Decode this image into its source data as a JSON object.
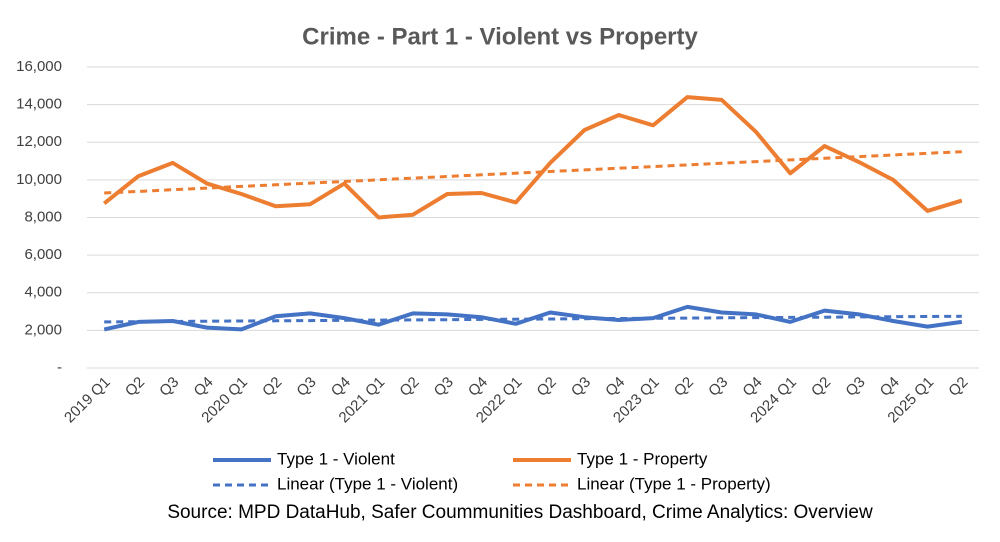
{
  "chart_data": {
    "type": "line",
    "title": "Crime - Part 1 - Violent vs Property",
    "source": "Source: MPD DataHub, Safer Coummunities Dashboard,  Crime Analytics: Overview",
    "categories": [
      "2019 Q1",
      "Q2",
      "Q3",
      "Q4",
      "2020 Q1",
      "Q2",
      "Q3",
      "Q4",
      "2021 Q1",
      "Q2",
      "Q3",
      "Q4",
      "2022 Q1",
      "Q2",
      "Q3",
      "Q4",
      "2023 Q1",
      "Q2",
      "Q3",
      "Q4",
      "2024 Q1",
      "Q2",
      "Q3",
      "Q4",
      "2025 Q1",
      "Q2"
    ],
    "series": [
      {
        "name": "Type 1 - Violent",
        "color": "#4472c4",
        "dashed": false,
        "values": [
          2050,
          2450,
          2500,
          2150,
          2050,
          2750,
          2900,
          2650,
          2300,
          2900,
          2850,
          2700,
          2350,
          2950,
          2700,
          2550,
          2650,
          3250,
          2950,
          2850,
          2450,
          3050,
          2850,
          2500,
          2200,
          2450
        ]
      },
      {
        "name": "Type 1 - Property",
        "color": "#ed7d31",
        "dashed": false,
        "values": [
          8750,
          10200,
          10900,
          9800,
          9250,
          8600,
          8700,
          9800,
          8000,
          8150,
          9250,
          9300,
          8800,
          10900,
          12650,
          13450,
          12900,
          14400,
          14250,
          12550,
          10350,
          11800,
          10950,
          10000,
          8350,
          8900
        ]
      },
      {
        "name": "Linear (Type 1 - Violent)",
        "color": "#4472c4",
        "dashed": true,
        "values": [
          2450,
          2462,
          2474,
          2486,
          2498,
          2510,
          2522,
          2534,
          2546,
          2558,
          2570,
          2582,
          2594,
          2606,
          2618,
          2630,
          2642,
          2654,
          2666,
          2678,
          2690,
          2702,
          2714,
          2726,
          2738,
          2750
        ]
      },
      {
        "name": "Linear (Type 1 - Property)",
        "color": "#ed7d31",
        "dashed": true,
        "values": [
          9300,
          9388,
          9476,
          9564,
          9652,
          9740,
          9828,
          9916,
          10004,
          10092,
          10180,
          10268,
          10356,
          10444,
          10532,
          10620,
          10708,
          10796,
          10884,
          10972,
          11060,
          11148,
          11236,
          11324,
          11412,
          11500
        ]
      }
    ],
    "ylim": [
      0,
      16000
    ],
    "yticks": [
      {
        "value": 0,
        "label": "-"
      },
      {
        "value": 2000,
        "label": "2,000"
      },
      {
        "value": 4000,
        "label": "4,000"
      },
      {
        "value": 6000,
        "label": "6,000"
      },
      {
        "value": 8000,
        "label": "8,000"
      },
      {
        "value": 10000,
        "label": "10,000"
      },
      {
        "value": 12000,
        "label": "12,000"
      },
      {
        "value": 14000,
        "label": "14,000"
      },
      {
        "value": 16000,
        "label": "16,000"
      }
    ],
    "grid": true,
    "legend": "bottom"
  }
}
